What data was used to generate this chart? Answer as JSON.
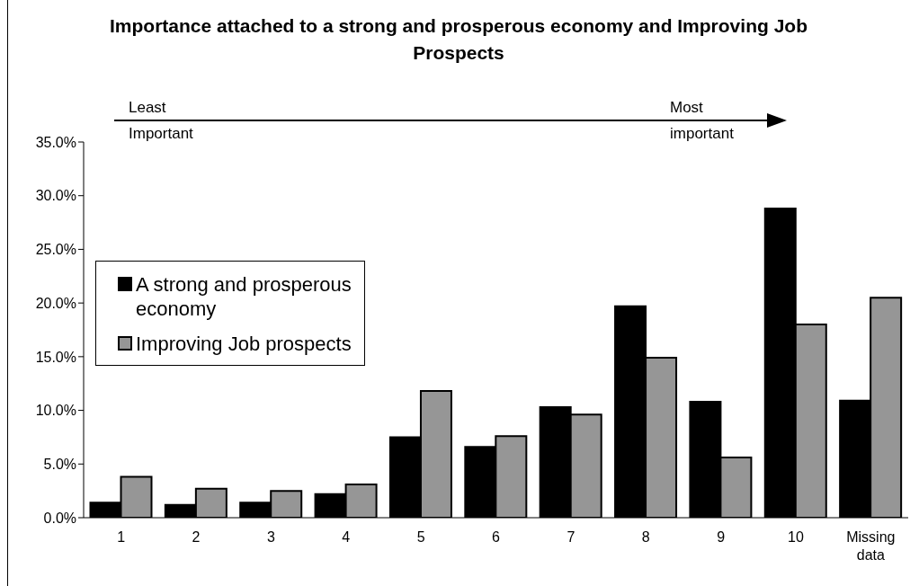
{
  "chart_data": {
    "type": "bar",
    "title": "Importance attached to a strong and prosperous economy and Improving Job Prospects",
    "categories": [
      "1",
      "2",
      "3",
      "4",
      "5",
      "6",
      "7",
      "8",
      "9",
      "10",
      "Missing data"
    ],
    "series": [
      {
        "name": "A strong and prosperous economy",
        "color": "#000000",
        "values": [
          1.4,
          1.2,
          1.4,
          2.2,
          7.5,
          6.6,
          10.3,
          19.7,
          10.8,
          28.8,
          10.9
        ]
      },
      {
        "name": "Improving Job prospects",
        "color": "#969696",
        "values": [
          3.8,
          2.7,
          2.5,
          3.1,
          11.8,
          7.6,
          9.6,
          14.9,
          5.6,
          18.0,
          20.5
        ]
      }
    ],
    "ylim": [
      0,
      35
    ],
    "yticks": [
      {
        "value": 0,
        "label": "0.0%"
      },
      {
        "value": 5,
        "label": "5.0%"
      },
      {
        "value": 10,
        "label": "10.0%"
      },
      {
        "value": 15,
        "label": "15.0%"
      },
      {
        "value": 20,
        "label": "20.0%"
      },
      {
        "value": 25,
        "label": "25.0%"
      },
      {
        "value": 30,
        "label": "30.0%"
      },
      {
        "value": 35,
        "label": "35.0%"
      }
    ],
    "legend": "left",
    "annotations": [
      "Least Important",
      "Most important"
    ]
  }
}
